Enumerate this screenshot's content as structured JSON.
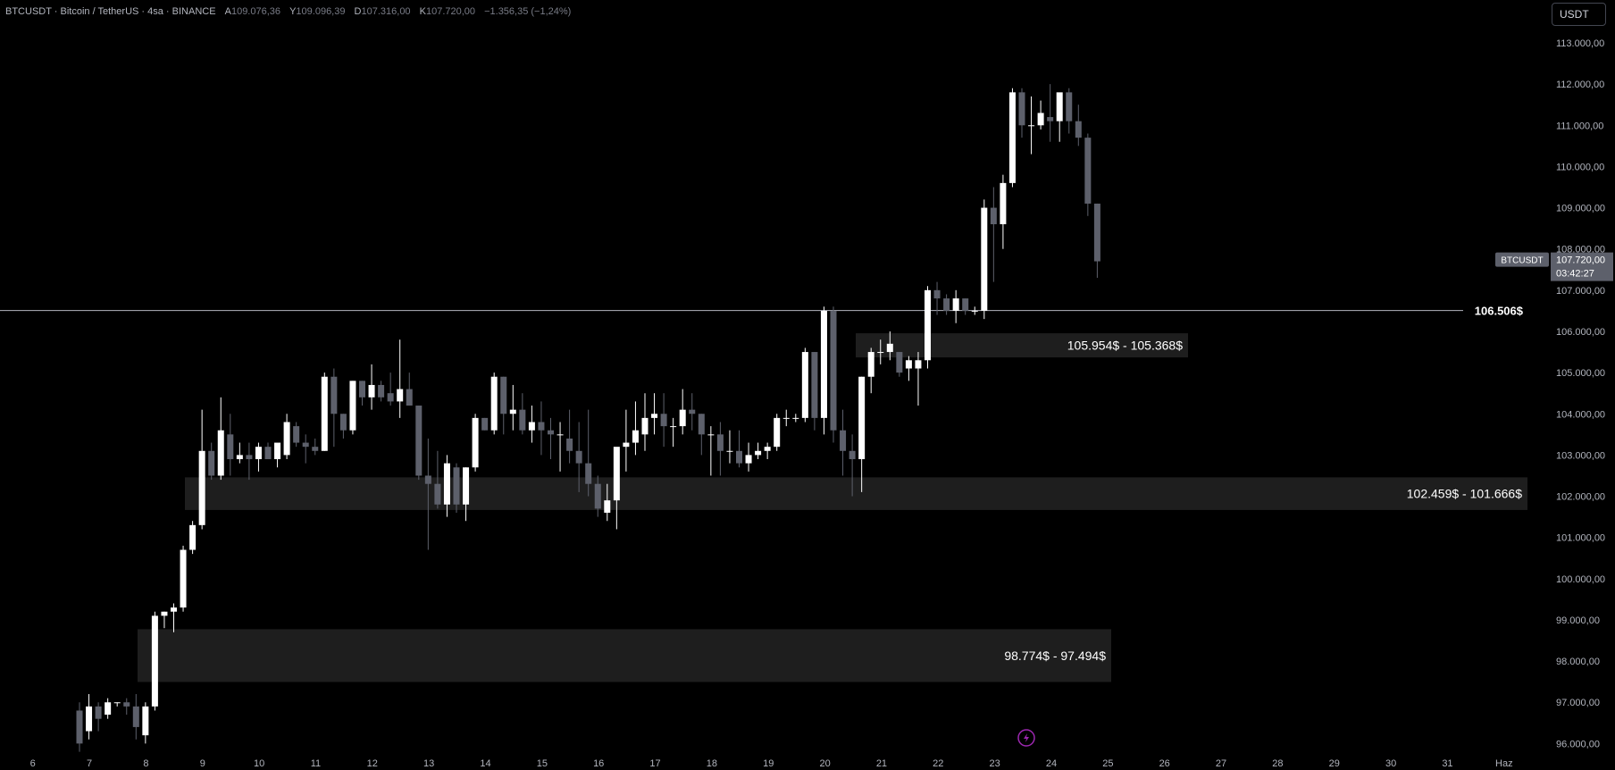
{
  "header": {
    "symbol_line": "BTCUSDT · Bitcoin / TetherUS · 4sa · BINANCE",
    "open_label": "A",
    "open": "109.076,36",
    "high_label": "Y",
    "high": "109.096,39",
    "low_label": "D",
    "low": "107.316,00",
    "close_label": "K",
    "close": "107.720,00",
    "change": "−1.356,35 (−1,24%)"
  },
  "currency_button": "USDT",
  "price_tag": {
    "symbol": "BTCUSDT",
    "price": "107.720,00",
    "countdown": "03:42:27"
  },
  "colors": {
    "up": "#ffffff",
    "down": "#5d606b",
    "zone": "#1e1e1e",
    "line": "#b2b5be",
    "axis_text": "#b2b5be"
  },
  "chart_data": {
    "type": "candlestick",
    "ylim": [
      95750,
      113500
    ],
    "y_ticks": [
      "113.000,00",
      "112.000,00",
      "111.000,00",
      "110.000,00",
      "109.000,00",
      "108.000,00",
      "107.000,00",
      "106.000,00",
      "105.000,00",
      "104.000,00",
      "103.000,00",
      "102.000,00",
      "101.000,00",
      "100.000,00",
      "99.000,00",
      "98.000,00",
      "97.000,00",
      "96.000,00"
    ],
    "y_tick_values": [
      113000,
      112000,
      111000,
      110000,
      109000,
      108000,
      107000,
      106000,
      105000,
      104000,
      103000,
      102000,
      101000,
      100000,
      99000,
      98000,
      97000,
      96000
    ],
    "x_ticks": [
      "6",
      "7",
      "8",
      "9",
      "10",
      "11",
      "12",
      "13",
      "14",
      "15",
      "16",
      "17",
      "18",
      "19",
      "20",
      "21",
      "22",
      "23",
      "24",
      "25",
      "26",
      "27",
      "28",
      "29",
      "30",
      "31",
      "Haz"
    ],
    "x_tick_days": [
      6,
      7,
      8,
      9,
      10,
      11,
      12,
      13,
      14,
      15,
      16,
      17,
      18,
      19,
      20,
      21,
      22,
      23,
      24,
      25,
      26,
      27,
      28,
      29,
      30,
      31,
      32
    ],
    "candles": [
      [
        96.8,
        97.0,
        95.8,
        96.0
      ],
      [
        96.3,
        97.2,
        96.1,
        96.9
      ],
      [
        96.9,
        97.0,
        96.3,
        96.6
      ],
      [
        96.7,
        97.1,
        96.6,
        97.0
      ],
      [
        97.0,
        97.0,
        96.9,
        97.0
      ],
      [
        97.0,
        97.1,
        96.7,
        96.9
      ],
      [
        96.9,
        97.2,
        96.1,
        96.4
      ],
      [
        96.2,
        97.0,
        96.0,
        96.9
      ],
      [
        96.9,
        99.2,
        96.8,
        99.1
      ],
      [
        99.1,
        99.2,
        98.8,
        99.2
      ],
      [
        99.2,
        99.4,
        98.7,
        99.3
      ],
      [
        99.3,
        100.8,
        99.2,
        100.7
      ],
      [
        100.7,
        101.4,
        100.6,
        101.3
      ],
      [
        101.3,
        104.1,
        101.2,
        103.1
      ],
      [
        103.1,
        103.3,
        102.4,
        102.5
      ],
      [
        102.5,
        104.4,
        102.4,
        103.6
      ],
      [
        103.5,
        104.0,
        102.5,
        102.9
      ],
      [
        102.9,
        103.3,
        102.8,
        103.0
      ],
      [
        103.0,
        103.3,
        102.4,
        102.9
      ],
      [
        102.9,
        103.3,
        102.6,
        103.2
      ],
      [
        103.2,
        103.3,
        102.9,
        102.9
      ],
      [
        102.9,
        103.1,
        102.7,
        103.3
      ],
      [
        103.0,
        104.0,
        102.9,
        103.8
      ],
      [
        103.7,
        103.8,
        103.2,
        103.3
      ],
      [
        103.3,
        103.5,
        102.8,
        103.2
      ],
      [
        103.2,
        103.4,
        103.0,
        103.1
      ],
      [
        103.1,
        105.0,
        103.1,
        104.9
      ],
      [
        104.9,
        105.1,
        103.2,
        104.0
      ],
      [
        104.0,
        104.0,
        103.4,
        103.6
      ],
      [
        103.6,
        104.8,
        103.5,
        104.8
      ],
      [
        104.8,
        104.8,
        104.2,
        104.4
      ],
      [
        104.4,
        105.2,
        104.1,
        104.7
      ],
      [
        104.7,
        104.8,
        104.3,
        104.4
      ],
      [
        104.5,
        105.0,
        104.2,
        104.3
      ],
      [
        104.3,
        105.8,
        103.9,
        104.6
      ],
      [
        104.6,
        105.0,
        104.2,
        104.2
      ],
      [
        104.2,
        104.2,
        102.4,
        102.5
      ],
      [
        102.5,
        103.4,
        100.7,
        102.3
      ],
      [
        102.3,
        103.1,
        101.7,
        101.8
      ],
      [
        101.8,
        103.0,
        101.5,
        102.8
      ],
      [
        102.7,
        102.8,
        101.6,
        101.8
      ],
      [
        101.8,
        102.7,
        101.4,
        102.7
      ],
      [
        102.7,
        104.0,
        102.6,
        103.9
      ],
      [
        103.9,
        103.9,
        103.6,
        103.6
      ],
      [
        103.6,
        105.0,
        103.5,
        104.9
      ],
      [
        104.9,
        104.9,
        103.5,
        104.0
      ],
      [
        104.0,
        104.7,
        103.6,
        104.1
      ],
      [
        104.1,
        104.5,
        103.5,
        103.6
      ],
      [
        103.6,
        104.2,
        103.3,
        103.8
      ],
      [
        103.8,
        104.3,
        103.0,
        103.6
      ],
      [
        103.6,
        103.9,
        102.9,
        103.5
      ],
      [
        103.5,
        103.8,
        102.6,
        103.5
      ],
      [
        103.4,
        104.1,
        102.8,
        103.1
      ],
      [
        103.1,
        103.8,
        102.1,
        102.8
      ],
      [
        102.8,
        104.1,
        102.0,
        102.3
      ],
      [
        102.3,
        102.5,
        101.5,
        101.7
      ],
      [
        101.6,
        102.3,
        101.4,
        101.9
      ],
      [
        101.9,
        102.6,
        101.2,
        103.2
      ],
      [
        103.2,
        104.1,
        102.6,
        103.3
      ],
      [
        103.3,
        104.3,
        103.0,
        103.6
      ],
      [
        103.5,
        104.5,
        103.1,
        103.9
      ],
      [
        103.9,
        104.5,
        103.5,
        104.0
      ],
      [
        104.0,
        104.5,
        103.2,
        103.7
      ],
      [
        103.7,
        103.9,
        103.2,
        103.7
      ],
      [
        103.7,
        104.6,
        103.5,
        104.1
      ],
      [
        104.1,
        104.5,
        103.6,
        104.0
      ],
      [
        104.0,
        104.0,
        103.0,
        103.5
      ],
      [
        103.5,
        103.7,
        102.5,
        103.5
      ],
      [
        103.5,
        103.8,
        102.5,
        103.1
      ],
      [
        103.1,
        103.6,
        102.8,
        103.1
      ],
      [
        103.1,
        103.6,
        102.7,
        102.8
      ],
      [
        102.8,
        103.3,
        102.6,
        103.0
      ],
      [
        103.0,
        103.3,
        102.9,
        103.1
      ],
      [
        103.1,
        103.3,
        102.9,
        103.2
      ],
      [
        103.2,
        104.0,
        103.1,
        103.9
      ],
      [
        103.9,
        104.1,
        103.7,
        103.9
      ],
      [
        103.9,
        104.0,
        103.8,
        103.9
      ],
      [
        103.9,
        105.6,
        103.8,
        105.5
      ],
      [
        105.5,
        105.5,
        103.6,
        103.9
      ],
      [
        103.9,
        106.6,
        103.5,
        106.5
      ],
      [
        106.5,
        106.6,
        103.3,
        103.6
      ],
      [
        103.6,
        104.1,
        102.5,
        103.1
      ],
      [
        103.1,
        103.5,
        102.0,
        102.9
      ],
      [
        102.9,
        104.9,
        102.1,
        104.9
      ],
      [
        104.9,
        105.6,
        104.5,
        105.5
      ],
      [
        105.5,
        105.8,
        105.2,
        105.5
      ],
      [
        105.5,
        106.0,
        105.3,
        105.7
      ],
      [
        105.5,
        105.5,
        104.9,
        105.0
      ],
      [
        105.1,
        105.4,
        104.8,
        105.3
      ],
      [
        105.1,
        105.5,
        104.2,
        105.3
      ],
      [
        105.3,
        107.1,
        105.1,
        107.0
      ],
      [
        107.0,
        107.2,
        106.4,
        106.8
      ],
      [
        106.8,
        106.9,
        106.4,
        106.5
      ],
      [
        106.5,
        107.0,
        106.2,
        106.8
      ],
      [
        106.8,
        106.8,
        106.4,
        106.5
      ],
      [
        106.5,
        106.6,
        106.4,
        106.5
      ],
      [
        106.5,
        109.2,
        106.3,
        109.0
      ],
      [
        109.0,
        109.5,
        107.2,
        108.6
      ],
      [
        108.6,
        109.8,
        108.0,
        109.6
      ],
      [
        109.6,
        111.9,
        109.5,
        111.8
      ],
      [
        111.8,
        111.9,
        110.7,
        111.0
      ],
      [
        111.0,
        111.7,
        110.3,
        111.0
      ],
      [
        111.0,
        111.6,
        110.9,
        111.3
      ],
      [
        111.2,
        112.0,
        110.6,
        111.1
      ],
      [
        111.1,
        111.7,
        110.6,
        111.8
      ],
      [
        111.8,
        111.9,
        110.8,
        111.1
      ],
      [
        111.1,
        111.5,
        110.5,
        110.7
      ],
      [
        110.7,
        110.8,
        108.8,
        109.1
      ],
      [
        109.1,
        109.1,
        107.3,
        107.7
      ]
    ],
    "horizontal_line": {
      "value": 106506,
      "label": "106.506$"
    },
    "zones": [
      {
        "high": 105954,
        "low": 105368,
        "label": "105.954$ - 105.368$"
      },
      {
        "high": 102459,
        "low": 101666,
        "label": "102.459$ - 101.666$"
      },
      {
        "high": 98774,
        "low": 97494,
        "label": "98.774$ - 97.494$"
      }
    ],
    "current_price": 107720
  }
}
